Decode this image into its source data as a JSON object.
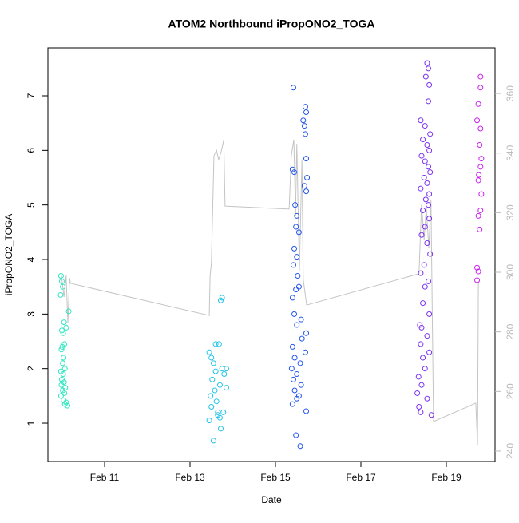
{
  "chart_data": {
    "type": "scatter",
    "title": "ATOM2 Northbound iPropONO2_TOGA",
    "x_label": "Date",
    "y_label": "iPropONO2_TOGA",
    "xlim": [
      9.673,
      20.14
    ],
    "ylim": [
      0.298,
      7.878
    ],
    "y2lim": [
      236.5,
      375.3
    ],
    "xticks": [
      {
        "value": 11,
        "label": "Feb 11"
      },
      {
        "value": 13,
        "label": "Feb 13"
      },
      {
        "value": 15,
        "label": "Feb 15"
      },
      {
        "value": 17,
        "label": "Feb 17"
      },
      {
        "value": 19,
        "label": "Feb 19"
      }
    ],
    "yticks": [
      1,
      2,
      3,
      4,
      5,
      6,
      7
    ],
    "y2ticks": [
      240,
      260,
      280,
      300,
      320,
      340,
      360
    ],
    "series": [
      {
        "color": "#2ee8c0",
        "x": [
          9.98,
          10.0,
          10.02,
          9.97,
          10.05,
          10.0,
          10.03,
          10.06,
          10.01,
          9.99,
          10.04,
          10.02,
          10.07,
          9.98,
          10.03,
          10.0,
          10.05,
          9.99,
          10.08,
          10.02,
          10.06,
          9.98,
          10.04,
          10.1,
          10.07,
          10.13,
          10.16,
          10.1
        ],
        "values": [
          3.7,
          3.6,
          3.5,
          3.35,
          2.85,
          2.7,
          2.65,
          2.45,
          2.4,
          2.35,
          2.2,
          2.1,
          2.0,
          1.95,
          1.9,
          1.8,
          1.75,
          1.7,
          1.65,
          1.6,
          1.55,
          1.5,
          1.42,
          1.38,
          1.35,
          1.32,
          3.05,
          2.75
        ]
      },
      {
        "color": "#22c4e6",
        "x": [
          13.45,
          13.5,
          13.55,
          13.6,
          13.52,
          13.58,
          13.48,
          13.62,
          13.5,
          13.65,
          13.45,
          13.72,
          13.55,
          13.6,
          13.68,
          13.75,
          13.8,
          13.7,
          13.65,
          13.7,
          13.72,
          13.75,
          13.85,
          13.85,
          13.78
        ],
        "values": [
          2.3,
          2.2,
          2.1,
          1.95,
          1.8,
          1.6,
          1.5,
          1.4,
          1.3,
          1.2,
          1.05,
          0.9,
          0.68,
          2.45,
          2.45,
          2.0,
          1.9,
          1.7,
          1.15,
          1.1,
          3.25,
          3.3,
          2.0,
          1.65,
          1.2
        ]
      },
      {
        "color": "#2255ee",
        "x": [
          15.42,
          15.7,
          15.72,
          15.65,
          15.68,
          15.7,
          15.72,
          15.4,
          15.44,
          15.74,
          15.68,
          15.72,
          15.46,
          15.5,
          15.48,
          15.55,
          15.44,
          15.5,
          15.42,
          15.52,
          15.55,
          15.48,
          15.4,
          15.44,
          15.6,
          15.5,
          15.72,
          15.62,
          15.4,
          15.7,
          15.45,
          15.58,
          15.38,
          15.5,
          15.42,
          15.6,
          15.45,
          15.55,
          15.5,
          15.4,
          15.72,
          15.48,
          15.58
        ],
        "values": [
          7.15,
          6.8,
          6.7,
          6.55,
          6.45,
          6.3,
          5.85,
          5.65,
          5.6,
          5.5,
          5.35,
          5.25,
          5.0,
          4.8,
          4.6,
          4.5,
          4.2,
          4.05,
          3.9,
          3.7,
          3.5,
          3.45,
          3.3,
          3.0,
          2.9,
          2.8,
          2.65,
          2.55,
          2.4,
          2.3,
          2.2,
          2.1,
          2.0,
          1.9,
          1.8,
          1.7,
          1.6,
          1.5,
          1.45,
          1.35,
          1.22,
          0.78,
          0.58
        ]
      },
      {
        "color": "#7a30ee",
        "x": [
          18.55,
          18.58,
          18.52,
          18.6,
          18.58,
          18.4,
          18.5,
          18.62,
          18.45,
          18.55,
          18.6,
          18.42,
          18.5,
          18.58,
          18.62,
          18.48,
          18.55,
          18.4,
          18.6,
          18.52,
          18.58,
          18.45,
          18.6,
          18.5,
          18.42,
          18.55,
          18.62,
          18.48,
          18.4,
          18.58,
          18.5,
          18.45,
          18.6,
          18.38,
          18.42,
          18.55,
          18.4,
          18.6,
          18.45,
          18.5,
          18.35,
          18.42,
          18.32,
          18.55,
          18.36,
          18.4,
          18.65
        ],
        "values": [
          7.6,
          7.5,
          7.35,
          7.2,
          6.9,
          6.55,
          6.45,
          6.3,
          6.2,
          6.1,
          6.0,
          5.9,
          5.8,
          5.7,
          5.6,
          5.5,
          5.4,
          5.3,
          5.2,
          5.1,
          5.0,
          4.9,
          4.75,
          4.6,
          4.45,
          4.3,
          4.1,
          3.9,
          3.75,
          3.6,
          3.5,
          3.2,
          3.0,
          2.8,
          2.75,
          2.6,
          2.45,
          2.3,
          2.2,
          2.0,
          1.85,
          1.7,
          1.55,
          1.45,
          1.3,
          1.2,
          1.15
        ]
      },
      {
        "color": "#cc22ee",
        "x": [
          19.8,
          19.8,
          19.75,
          19.72,
          19.8,
          19.78,
          19.82,
          19.8,
          19.76,
          19.75,
          19.82,
          19.8,
          19.75,
          19.78,
          19.72,
          19.75,
          19.72
        ],
        "values": [
          7.35,
          7.15,
          6.85,
          6.55,
          6.4,
          6.1,
          5.85,
          5.7,
          5.55,
          5.45,
          5.2,
          4.9,
          4.8,
          4.55,
          3.85,
          3.78,
          3.62
        ]
      },
      {
        "type": "line",
        "axis": "y2",
        "color": "#c4c4c4",
        "x": [
          9.99,
          10.05,
          10.1,
          10.14,
          10.18,
          10.2,
          13.45,
          13.47,
          13.5,
          13.56,
          13.62,
          13.67,
          13.73,
          13.79,
          13.82,
          15.32,
          15.37,
          15.43,
          15.47,
          15.5,
          15.56,
          15.62,
          15.65,
          15.73,
          18.36,
          18.42,
          18.48,
          18.53,
          18.59,
          18.64,
          18.7,
          19.69,
          19.73,
          19.75
        ],
        "values": [
          298.9,
          291.7,
          298.9,
          282.9,
          298.1,
          296.3,
          285.5,
          298.9,
          303,
          339.1,
          341,
          337.8,
          340.5,
          344.5,
          322.2,
          321.2,
          339.1,
          344.5,
          319,
          343.1,
          300.3,
          337.8,
          297.6,
          289,
          299.5,
          323,
          311,
          321.7,
          308.3,
          324.4,
          249.9,
          256.1,
          242.1,
          296.3
        ]
      }
    ]
  }
}
